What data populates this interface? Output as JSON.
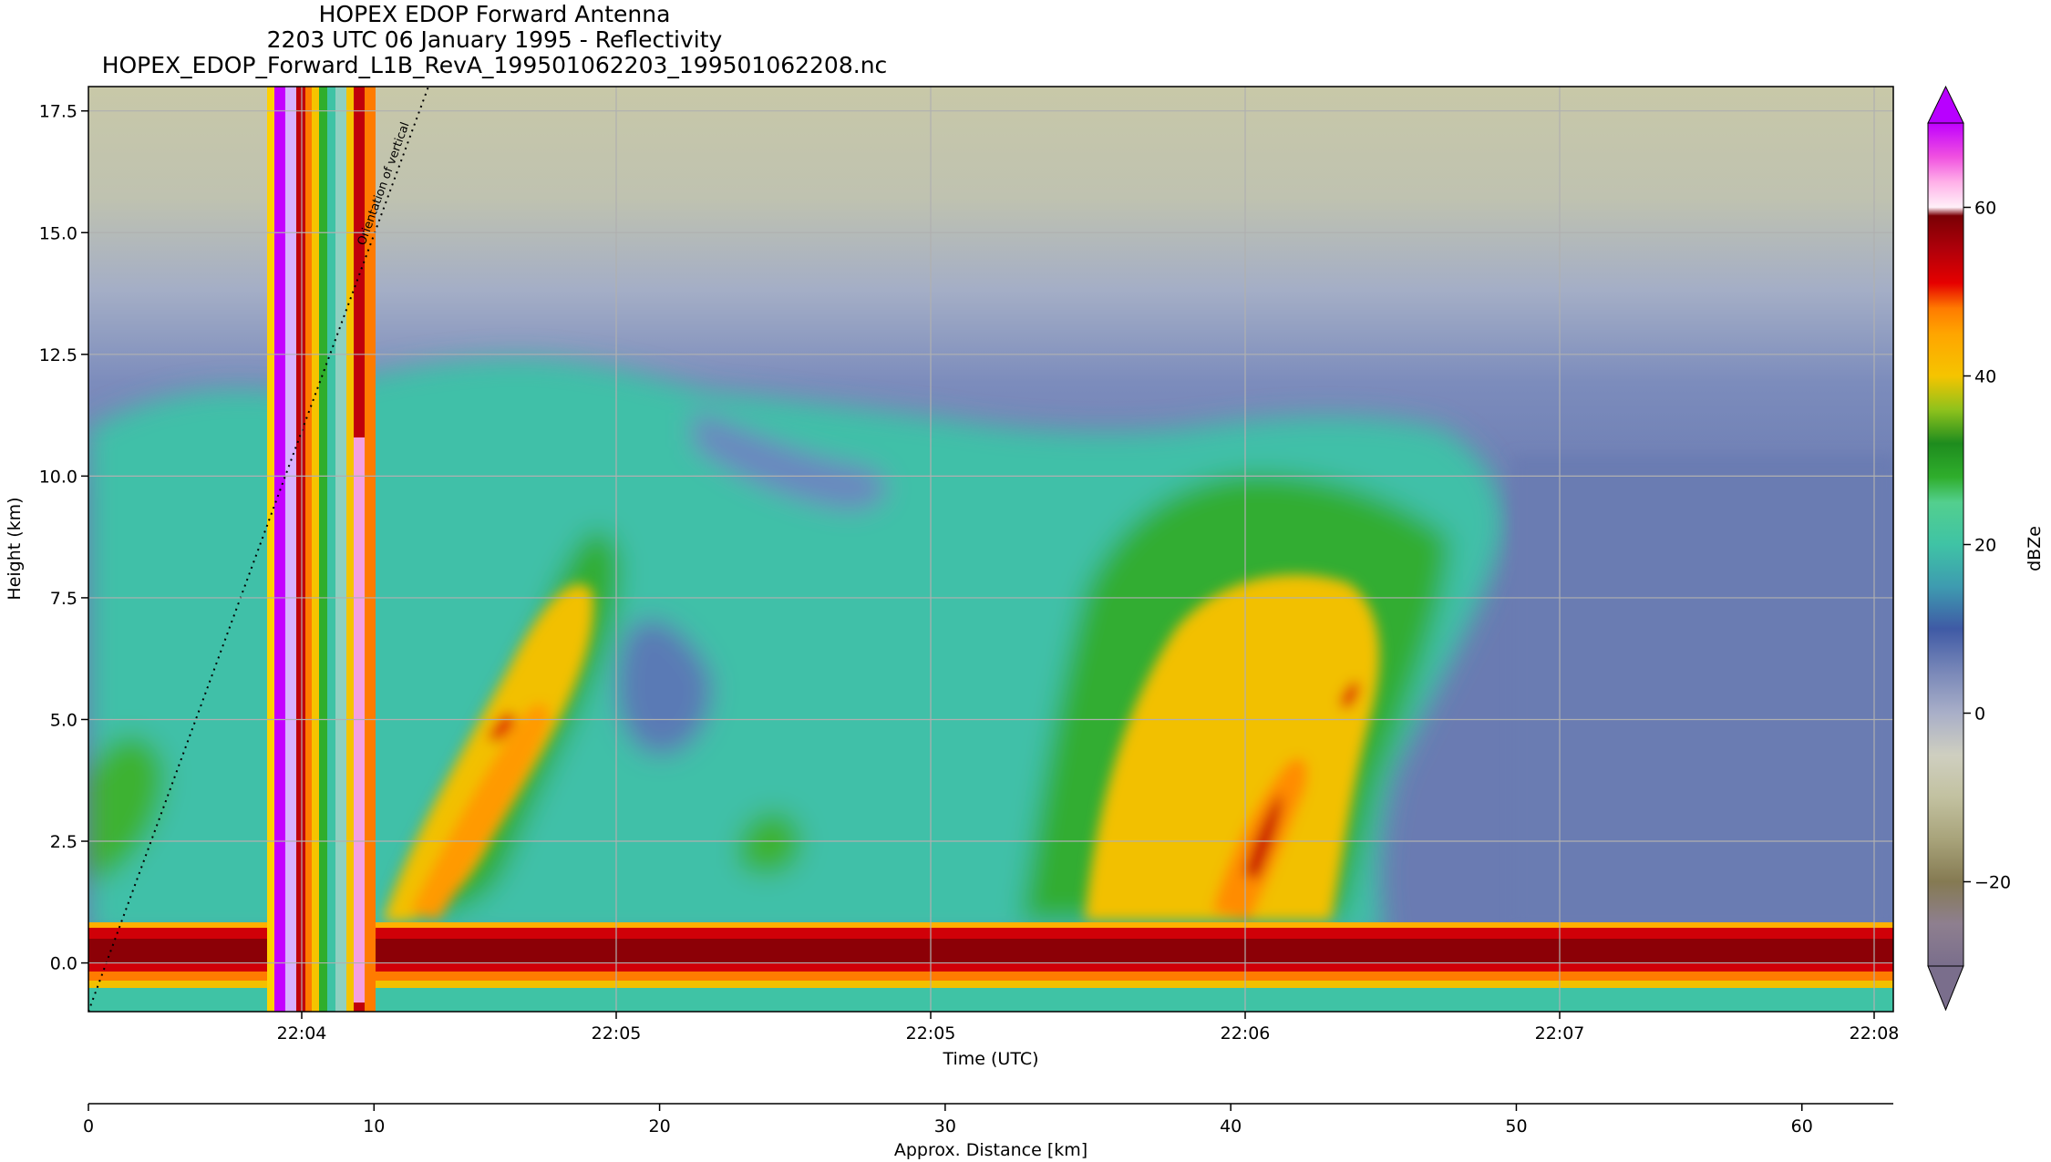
{
  "figure": {
    "title_lines": [
      "HOPEX EDOP Forward Antenna",
      "2203 UTC 06 January 1995 - Reflectivity",
      "HOPEX_EDOP_Forward_L1B_RevA_199501062203_199501062208.nc"
    ]
  },
  "colors": {
    "band_red": "#c4000a",
    "band_darkred": "#8c0006",
    "high_gray": "#c4c4a6",
    "low_blue": "#6a7bb0",
    "teal": "#3fc3a5",
    "green": "#2fae2c",
    "yellow": "#f5c400",
    "orange": "#ff8a00",
    "magenta": "#c400ff"
  },
  "chart_data": {
    "type": "heatmap",
    "variable": "Reflectivity",
    "xlabel": "Time (UTC)",
    "ylabel": "Height (km)",
    "x_ticks": [
      "22:04",
      "22:05",
      "22:05",
      "22:06",
      "22:07",
      "22:08"
    ],
    "y_ticks": [
      0.0,
      2.5,
      5.0,
      7.5,
      10.0,
      12.5,
      15.0,
      17.5
    ],
    "ylim": [
      -1.0,
      18.0
    ],
    "grid": true,
    "secondary_axis": {
      "label": "Approx. Distance [km]",
      "ticks": [
        0,
        10,
        20,
        30,
        40,
        50,
        60
      ],
      "range": [
        0,
        63.2
      ]
    },
    "annotation": "Orientation of vertical",
    "colorbar": {
      "label": "dBZe",
      "ticks": [
        -20,
        0,
        20,
        40,
        60
      ],
      "range": [
        -30,
        70
      ],
      "extend": "both",
      "stops": [
        {
          "value": -30,
          "color": "#7a6e8c"
        },
        {
          "value": -25,
          "color": "#8e7f8f"
        },
        {
          "value": -20,
          "color": "#857a52"
        },
        {
          "value": -15,
          "color": "#a8a37a"
        },
        {
          "value": -10,
          "color": "#c2c1a0"
        },
        {
          "value": -5,
          "color": "#cfcfc0"
        },
        {
          "value": 0,
          "color": "#a9afc8"
        },
        {
          "value": 5,
          "color": "#7887b8"
        },
        {
          "value": 10,
          "color": "#3f5aa5"
        },
        {
          "value": 15,
          "color": "#3e9bb0"
        },
        {
          "value": 20,
          "color": "#3fc3a5"
        },
        {
          "value": 25,
          "color": "#53cf8e"
        },
        {
          "value": 28,
          "color": "#2fae2c"
        },
        {
          "value": 32,
          "color": "#1e8c1e"
        },
        {
          "value": 36,
          "color": "#8fc21c"
        },
        {
          "value": 40,
          "color": "#f5c400"
        },
        {
          "value": 45,
          "color": "#ffa500"
        },
        {
          "value": 48,
          "color": "#ff7b00"
        },
        {
          "value": 51,
          "color": "#e60000"
        },
        {
          "value": 55,
          "color": "#b0000a"
        },
        {
          "value": 59,
          "color": "#7a0004"
        },
        {
          "value": 60,
          "color": "#fff0f8"
        },
        {
          "value": 63,
          "color": "#ffb0e8"
        },
        {
          "value": 66,
          "color": "#f050e0"
        },
        {
          "value": 70,
          "color": "#c000ff"
        }
      ]
    }
  }
}
